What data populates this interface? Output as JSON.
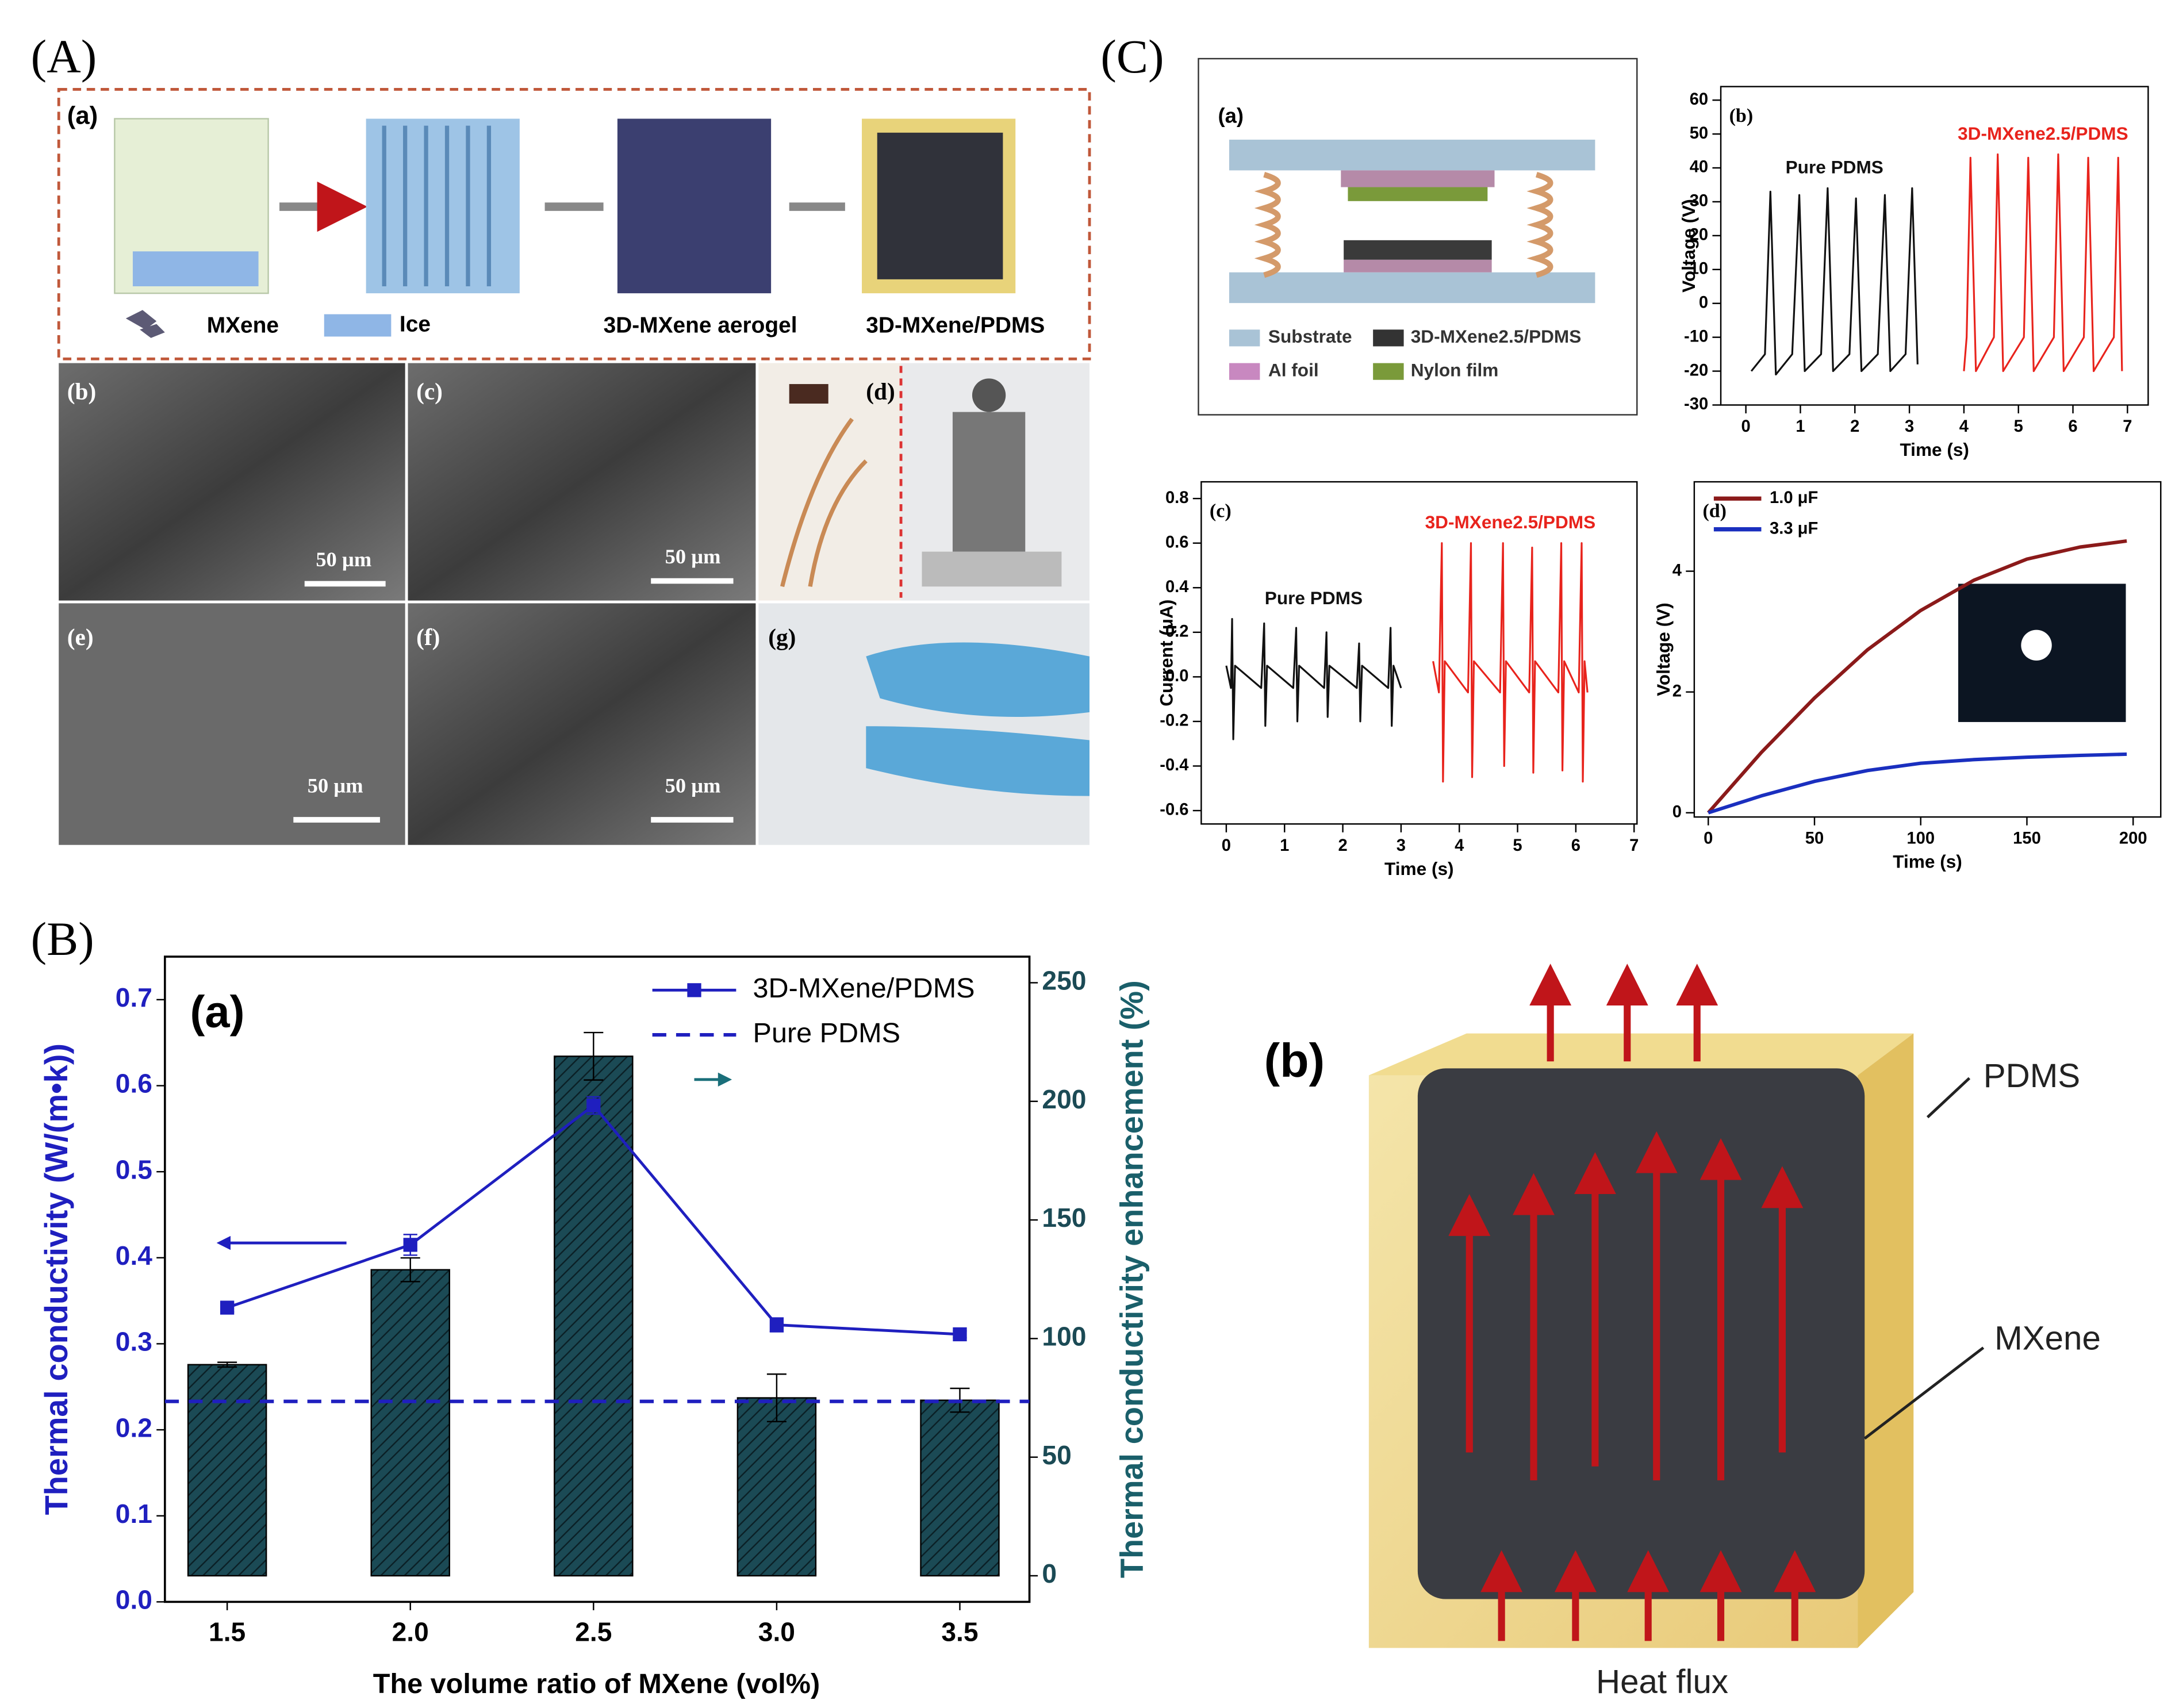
{
  "figure": {
    "panel_labels": [
      "(A)",
      "(B)",
      "(C)"
    ],
    "A": {
      "sub_labels": [
        "(a)",
        "(b)",
        "(c)",
        "(d)",
        "(e)",
        "(f)",
        "(g)"
      ],
      "legend": [
        "MXene",
        "Ice",
        "3D-MXene aerogel",
        "3D-MXene/PDMS"
      ],
      "scale_bars": [
        "50 µm",
        "50 µm",
        "50 µm",
        "50 µm"
      ]
    },
    "Ca": {
      "label": "(a)",
      "legend": [
        "Substrate",
        "3D-MXene2.5/PDMS",
        "Al foil",
        "Nylon film"
      ]
    },
    "Bb": {
      "label": "(b)",
      "callouts": [
        "PDMS",
        "MXene"
      ],
      "caption": "Heat flux"
    }
  },
  "chart_data": [
    {
      "type": "bar",
      "panel": "(a)",
      "xlabel": "The volume ratio of MXene (vol%)",
      "ylabel": "Thermal conductivity (W/(m•k))",
      "y2label": "Thermal conductivity enhancement (%)",
      "x": [
        1.5,
        2,
        2.5,
        3,
        3.5
      ],
      "xlim": [
        1.33,
        3.69
      ],
      "xticks": [
        1.5,
        {
          "value": 2,
          "label": "2.0"
        },
        2.5,
        {
          "value": 3,
          "label": "3.0"
        },
        3.5
      ],
      "ylim": [
        0,
        0.75
      ],
      "yticks": [
        {
          "value": 0,
          "label": "0.0"
        },
        0.1,
        0.2,
        0.3,
        0.4,
        0.5,
        0.6,
        0.7
      ],
      "y2lim": [
        -11,
        261
      ],
      "y2ticks": [
        0,
        50,
        100,
        150,
        200,
        250
      ],
      "legend": "upper right",
      "series": [
        {
          "type": "line",
          "name": "3D-MXene/PDMS",
          "color": "#1f1fbf",
          "values": [
            0.342,
            0.415,
            0.577,
            0.322,
            0.311
          ],
          "errors": [
            0.005,
            0.012,
            0.01,
            0.008,
            0.004
          ]
        },
        {
          "type": "bar",
          "axis": "y2",
          "color": "#1b4a55",
          "values": [
            89,
            129,
            219,
            75,
            74
          ],
          "errors": [
            1,
            5,
            10,
            10,
            5
          ]
        }
      ],
      "reference": {
        "name": "Pure PDMS",
        "value": 0.233,
        "color": "#1f1fbf"
      }
    },
    {
      "type": "line",
      "panel": "(b)",
      "xlabel": "Time (s)",
      "ylabel": "Voltage (V)",
      "xlim": [
        -0.46,
        7.38
      ],
      "xticks": [
        0,
        1,
        2,
        3,
        4,
        5,
        6,
        7
      ],
      "ylim": [
        -30,
        64
      ],
      "yticks": [
        60,
        50,
        40,
        30,
        20,
        10,
        0,
        -10,
        -20,
        -30
      ],
      "series": [
        {
          "name": "Pure PDMS",
          "color": "#111111",
          "x": [
            0.1,
            0.35,
            0.45,
            0.55,
            0.85,
            0.98,
            1.08,
            1.38,
            1.5,
            1.6,
            1.9,
            2.02,
            2.12,
            2.42,
            2.55,
            2.65,
            2.93,
            3.05,
            3.15
          ],
          "values": [
            -20,
            -15,
            33,
            -21,
            -15,
            32,
            -20,
            -15,
            34,
            -20,
            -15,
            31,
            -20,
            -15,
            32,
            -20,
            -15,
            34,
            -18
          ]
        },
        {
          "name": "3D-MXene2.5/PDMS",
          "color": "#e8231c",
          "x": [
            4,
            4.05,
            4.12,
            4.22,
            4.55,
            4.62,
            4.72,
            5.1,
            5.18,
            5.28,
            5.65,
            5.73,
            5.83,
            6.2,
            6.28,
            6.38,
            6.75,
            6.83,
            6.9
          ],
          "values": [
            -20,
            -10,
            43,
            -20,
            -10,
            44,
            -20,
            -10,
            43,
            -20,
            -10,
            44,
            -20,
            -10,
            43,
            -20,
            -10,
            43,
            -20
          ]
        }
      ]
    },
    {
      "type": "line",
      "panel": "(c)",
      "xlabel": "Time (s)",
      "ylabel": "Current (μA)",
      "xlim": [
        -0.43,
        7.05
      ],
      "xticks": [
        0,
        1,
        2,
        3,
        4,
        5,
        6,
        7
      ],
      "ylim": [
        -0.66,
        0.875
      ],
      "yticks": [
        0.8,
        0.6,
        0.4,
        0.2,
        {
          "value": 0,
          "label": "0.0"
        },
        -0.2,
        -0.4,
        -0.6
      ],
      "series": [
        {
          "name": "Pure PDMS",
          "color": "#111111",
          "x": [
            0,
            0.08,
            0.1,
            0.12,
            0.15,
            0.6,
            0.65,
            0.67,
            0.7,
            1.15,
            1.2,
            1.22,
            1.25,
            1.68,
            1.72,
            1.74,
            1.77,
            2.24,
            2.28,
            2.3,
            2.33,
            2.78,
            2.82,
            2.84,
            2.87,
            3
          ],
          "values": [
            0.05,
            -0.05,
            0.26,
            -0.28,
            0.05,
            -0.05,
            0.24,
            -0.22,
            0.05,
            -0.05,
            0.22,
            -0.2,
            0.05,
            -0.05,
            0.2,
            -0.18,
            0.05,
            -0.05,
            0.15,
            -0.2,
            0.05,
            -0.05,
            0.22,
            -0.22,
            0.05,
            -0.05
          ]
        },
        {
          "name": "3D-MXene2.5/PDMS",
          "color": "#e8231c",
          "x": [
            3.55,
            3.65,
            3.7,
            3.72,
            3.75,
            4.15,
            4.2,
            4.22,
            4.25,
            4.7,
            4.75,
            4.77,
            4.8,
            5.2,
            5.25,
            5.27,
            5.3,
            5.7,
            5.75,
            5.77,
            5.8,
            6.05,
            6.1,
            6.12,
            6.15,
            6.2
          ],
          "values": [
            0.07,
            -0.07,
            0.6,
            -0.47,
            0.07,
            -0.07,
            0.6,
            -0.45,
            0.07,
            -0.07,
            0.6,
            -0.4,
            0.07,
            -0.07,
            0.58,
            -0.43,
            0.07,
            -0.07,
            0.6,
            -0.42,
            0.07,
            -0.07,
            0.6,
            -0.47,
            0.07,
            -0.07
          ]
        }
      ]
    },
    {
      "type": "line",
      "panel": "(d)",
      "xlabel": "Time (s)",
      "ylabel": "Voltage (V)",
      "xlim": [
        -6.6,
        213
      ],
      "xticks": [
        0,
        50,
        100,
        150,
        200
      ],
      "ylim": [
        -0.07,
        5.48
      ],
      "yticks": [
        0,
        2,
        4
      ],
      "legend": "upper left",
      "series": [
        {
          "name": "1.0 μF",
          "color": "#8b1a1a",
          "x": [
            0,
            25,
            50,
            75,
            100,
            125,
            150,
            175,
            197
          ],
          "values": [
            0,
            1.0,
            1.9,
            2.7,
            3.35,
            3.85,
            4.2,
            4.4,
            4.5
          ]
        },
        {
          "name": "3.3 μF",
          "color": "#1a2fbf",
          "x": [
            0,
            25,
            50,
            75,
            100,
            125,
            150,
            175,
            197
          ],
          "values": [
            0,
            0.28,
            0.52,
            0.7,
            0.82,
            0.88,
            0.92,
            0.95,
            0.97
          ]
        }
      ]
    }
  ]
}
